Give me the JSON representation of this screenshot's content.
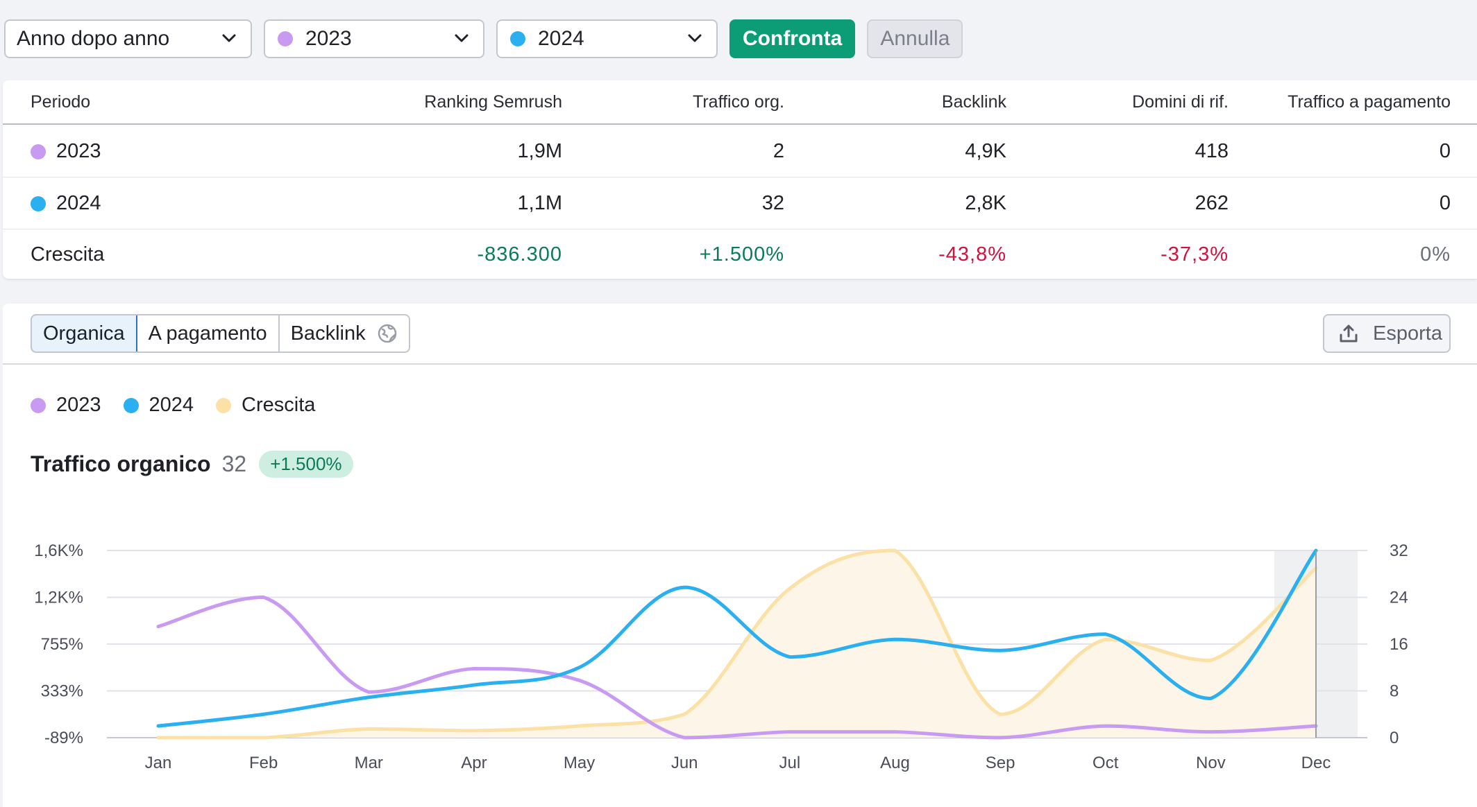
{
  "toolbar": {
    "period_select": "Anno dopo anno",
    "year1_select": "2023",
    "year2_select": "2024",
    "compare_button": "Confronta",
    "cancel_button": "Annulla"
  },
  "colors": {
    "year1": "#c89af2",
    "year2": "#2ab0f0",
    "growth": "#fbe1a6",
    "growth_fill": "#fdf6e8",
    "positive": "#0b7a5b",
    "negative": "#d0123f",
    "primary_button": "#0c9c76"
  },
  "table": {
    "headers": [
      "Periodo",
      "Ranking Semrush",
      "Traffico org.",
      "Backlink",
      "Domini di rif.",
      "Traffico a pagamento"
    ],
    "rows": [
      {
        "period": "2023",
        "rank": "1,9M",
        "traffic": "2",
        "backlinks": "4,9K",
        "ref_domains": "418",
        "paid": "0"
      },
      {
        "period": "2024",
        "rank": "1,1M",
        "traffic": "32",
        "backlinks": "2,8K",
        "ref_domains": "262",
        "paid": "0"
      }
    ],
    "growth": {
      "label": "Crescita",
      "rank": "-836.300",
      "traffic": "+1.500%",
      "backlinks": "-43,8%",
      "ref_domains": "-37,3%",
      "paid": "0%"
    }
  },
  "tabs": {
    "organic": "Organica",
    "paid": "A pagamento",
    "backlinks": "Backlink",
    "export": "Esporta"
  },
  "legend": {
    "year1": "2023",
    "year2": "2024",
    "growth": "Crescita"
  },
  "metric": {
    "title": "Traffico organico",
    "value": "32",
    "change": "+1.500%"
  },
  "chart_data": {
    "type": "line",
    "title": "Traffico organico",
    "categories": [
      "Jan",
      "Feb",
      "Mar",
      "Apr",
      "May",
      "Jun",
      "Jul",
      "Aug",
      "Sep",
      "Oct",
      "Nov",
      "Dec"
    ],
    "y_left_ticks": [
      "1,6K%",
      "1,2K%",
      "755%",
      "333%",
      "-89%"
    ],
    "y_right_ticks": [
      "32",
      "24",
      "16",
      "8",
      "0"
    ],
    "y_right_range": [
      0,
      32
    ],
    "highlighted_category": "Dec",
    "grid": true,
    "series": [
      {
        "name": "2023",
        "axis": "right",
        "values": [
          19,
          24,
          7.8,
          11.8,
          9.8,
          0,
          1,
          1,
          0,
          2,
          1,
          2
        ]
      },
      {
        "name": "2024",
        "axis": "right",
        "values": [
          2,
          4,
          6.9,
          9,
          12,
          25.7,
          13.8,
          16.8,
          14.9,
          17.7,
          6.7,
          32
        ]
      },
      {
        "name": "Crescita",
        "axis": "right",
        "type": "area",
        "values": [
          0,
          0,
          1.5,
          1.2,
          2,
          4,
          25.5,
          32,
          4,
          16.8,
          13.2,
          29
        ]
      }
    ]
  }
}
